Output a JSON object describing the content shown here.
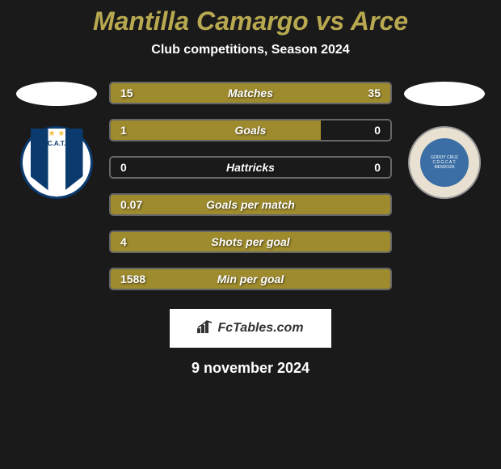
{
  "title": "Mantilla Camargo vs Arce",
  "subtitle": "Club competitions, Season 2024",
  "branding": "FcTables.com",
  "date": "9 november 2024",
  "colors": {
    "background": "#1a1a1a",
    "title_color": "#b8a850",
    "bar_fill": "#9e8b2e",
    "bar_border": "#666666",
    "text_white": "#ffffff"
  },
  "left_club": {
    "name": "C.A.T.",
    "shield_colors": [
      "#0a3a6e",
      "#ffffff"
    ]
  },
  "right_club": {
    "name": "Godoy Cruz",
    "shield_color": "#3a6ea5"
  },
  "stats": [
    {
      "label": "Matches",
      "left_value": "15",
      "right_value": "35",
      "left_pct": 30,
      "right_pct": 70
    },
    {
      "label": "Goals",
      "left_value": "1",
      "right_value": "0",
      "left_pct": 75,
      "right_pct": 0
    },
    {
      "label": "Hattricks",
      "left_value": "0",
      "right_value": "0",
      "left_pct": 0,
      "right_pct": 0
    },
    {
      "label": "Goals per match",
      "left_value": "0.07",
      "right_value": "",
      "left_pct": 100,
      "right_pct": 0
    },
    {
      "label": "Shots per goal",
      "left_value": "4",
      "right_value": "",
      "left_pct": 100,
      "right_pct": 0
    },
    {
      "label": "Min per goal",
      "left_value": "1588",
      "right_value": "",
      "left_pct": 100,
      "right_pct": 0
    }
  ]
}
